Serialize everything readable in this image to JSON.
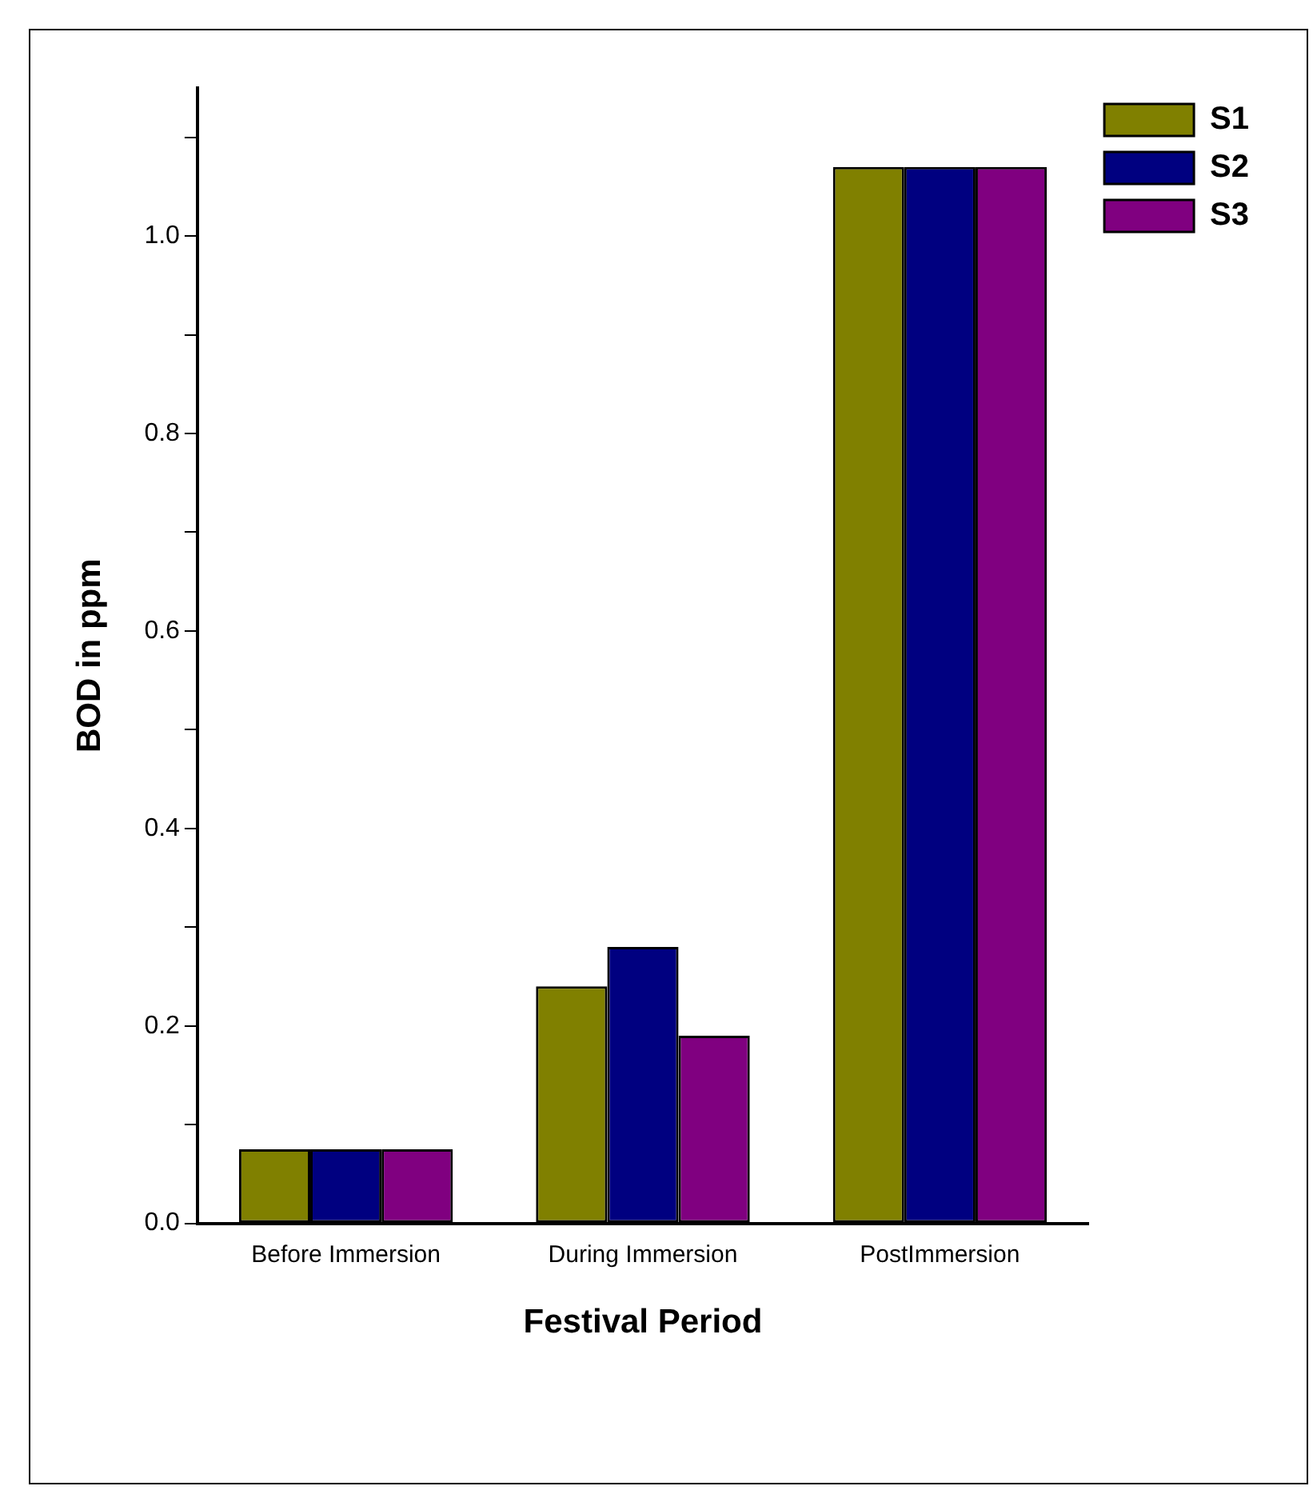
{
  "chart_data": {
    "type": "bar",
    "xlabel": "Festival Period",
    "ylabel": "BOD in ppm",
    "categories": [
      "Before Immersion",
      "During Immersion",
      "PostImmersion"
    ],
    "series": [
      {
        "name": "S1",
        "color": "#808000",
        "values": [
          0.075,
          0.24,
          1.07
        ]
      },
      {
        "name": "S2",
        "color": "#000080",
        "values": [
          0.075,
          0.28,
          1.07
        ]
      },
      {
        "name": "S3",
        "color": "#800080",
        "values": [
          0.075,
          0.19,
          1.07
        ]
      }
    ],
    "ylim": [
      0,
      1.15
    ],
    "yticks": [
      {
        "value": 0,
        "label": "0.0"
      },
      {
        "value": 0.1,
        "label": null
      },
      0.2,
      {
        "value": 0.3,
        "label": null
      },
      0.4,
      {
        "value": 0.5,
        "label": null
      },
      0.6,
      {
        "value": 0.7,
        "label": null
      },
      0.8,
      {
        "value": 0.9,
        "label": null
      },
      {
        "value": 1.0,
        "label": "1.0"
      },
      {
        "value": 1.1,
        "label": null
      }
    ],
    "grid": false,
    "legend": "top right"
  }
}
